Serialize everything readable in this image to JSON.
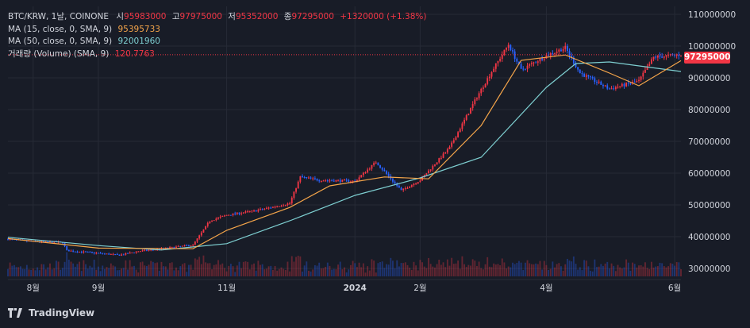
{
  "header": {
    "symbol": "BTC/KRW, 1날, COINONE",
    "open_label": "시",
    "open": "95983000",
    "high_label": "고",
    "high": "97975000",
    "low_label": "저",
    "low": "95352000",
    "close_label": "종",
    "close": "97295000",
    "change": "+1320000 (+1.38%)"
  },
  "indicators": [
    {
      "label": "MA (15, close, 0, SMA, 9)",
      "value": "95395733",
      "color": "#f5a54a"
    },
    {
      "label": "MA (50, close, 0, SMA, 9)",
      "value": "92001960",
      "color": "#7ecfd1"
    },
    {
      "label": "거래량 (Volume) (SMA, 9)",
      "value": "120.7763",
      "color": "#f23645"
    }
  ],
  "price_badge": "97295000",
  "brand": "TradingView",
  "colors": {
    "up": "#f23645",
    "down": "#2962ff",
    "bg": "#181c27",
    "grid": "#262a36",
    "ma15": "#f5a54a",
    "ma50": "#7ecfd1",
    "axis_text": "#d1d4dc"
  },
  "chart_data": {
    "type": "candlestick",
    "y_axis": {
      "ticks": [
        110000000,
        100000000,
        90000000,
        80000000,
        70000000,
        60000000,
        50000000,
        40000000,
        30000000
      ],
      "tick_labels": [
        "110000000",
        "100000000",
        "90000000",
        "80000000",
        "70000000",
        "60000000",
        "50000000",
        "40000000",
        "30000000"
      ],
      "ylim": [
        27500000,
        112500000
      ]
    },
    "x_axis": {
      "tick_labels": [
        "8월",
        "9월",
        "11월",
        "2024",
        "2월",
        "4월",
        "6월"
      ],
      "tick_dates": [
        "2023-08-01",
        "2023-09-01",
        "2023-11-01",
        "2024-01-01",
        "2024-02-01",
        "2024-04-01",
        "2024-06-01"
      ],
      "range": [
        "2023-07-20",
        "2024-06-04"
      ]
    },
    "grid": true,
    "price_series": [
      [
        "2023-07-20",
        39200000
      ],
      [
        "2023-08-01",
        38500000
      ],
      [
        "2023-08-15",
        38200000
      ],
      [
        "2023-08-17",
        35600000
      ],
      [
        "2023-09-01",
        34800000
      ],
      [
        "2023-09-11",
        34200000
      ],
      [
        "2023-09-20",
        35400000
      ],
      [
        "2023-10-01",
        36200000
      ],
      [
        "2023-10-16",
        37400000
      ],
      [
        "2023-10-24",
        45000000
      ],
      [
        "2023-11-01",
        46800000
      ],
      [
        "2023-11-15",
        48200000
      ],
      [
        "2023-12-01",
        50500000
      ],
      [
        "2023-12-06",
        58800000
      ],
      [
        "2023-12-15",
        57800000
      ],
      [
        "2024-01-01",
        57500000
      ],
      [
        "2024-01-11",
        63500000
      ],
      [
        "2024-01-23",
        54500000
      ],
      [
        "2024-02-01",
        57800000
      ],
      [
        "2024-02-15",
        68000000
      ],
      [
        "2024-02-28",
        84000000
      ],
      [
        "2024-03-06",
        92000000
      ],
      [
        "2024-03-14",
        100500000
      ],
      [
        "2024-03-20",
        92500000
      ],
      [
        "2024-04-01",
        97000000
      ],
      [
        "2024-04-10",
        99500000
      ],
      [
        "2024-04-17",
        91500000
      ],
      [
        "2024-05-01",
        86500000
      ],
      [
        "2024-05-15",
        89000000
      ],
      [
        "2024-05-22",
        96500000
      ],
      [
        "2024-06-04",
        97295000
      ]
    ],
    "ma15_series": [
      [
        "2023-07-20",
        39400000
      ],
      [
        "2023-09-01",
        36400000
      ],
      [
        "2023-10-16",
        36200000
      ],
      [
        "2023-11-01",
        42000000
      ],
      [
        "2023-12-01",
        49200000
      ],
      [
        "2023-12-20",
        56000000
      ],
      [
        "2024-01-15",
        58800000
      ],
      [
        "2024-02-05",
        58200000
      ],
      [
        "2024-03-01",
        75000000
      ],
      [
        "2024-03-20",
        95500000
      ],
      [
        "2024-04-10",
        97200000
      ],
      [
        "2024-05-01",
        91500000
      ],
      [
        "2024-05-15",
        87500000
      ],
      [
        "2024-06-04",
        95395733
      ]
    ],
    "ma50_series": [
      [
        "2023-07-20",
        39800000
      ],
      [
        "2023-09-01",
        37200000
      ],
      [
        "2023-10-01",
        35800000
      ],
      [
        "2023-11-01",
        37800000
      ],
      [
        "2023-12-01",
        45000000
      ],
      [
        "2024-01-01",
        53000000
      ],
      [
        "2024-02-01",
        58500000
      ],
      [
        "2024-03-01",
        65000000
      ],
      [
        "2024-04-01",
        87000000
      ],
      [
        "2024-04-15",
        94500000
      ],
      [
        "2024-05-01",
        95000000
      ],
      [
        "2024-06-04",
        92001960
      ]
    ],
    "last_price": 97295000
  }
}
